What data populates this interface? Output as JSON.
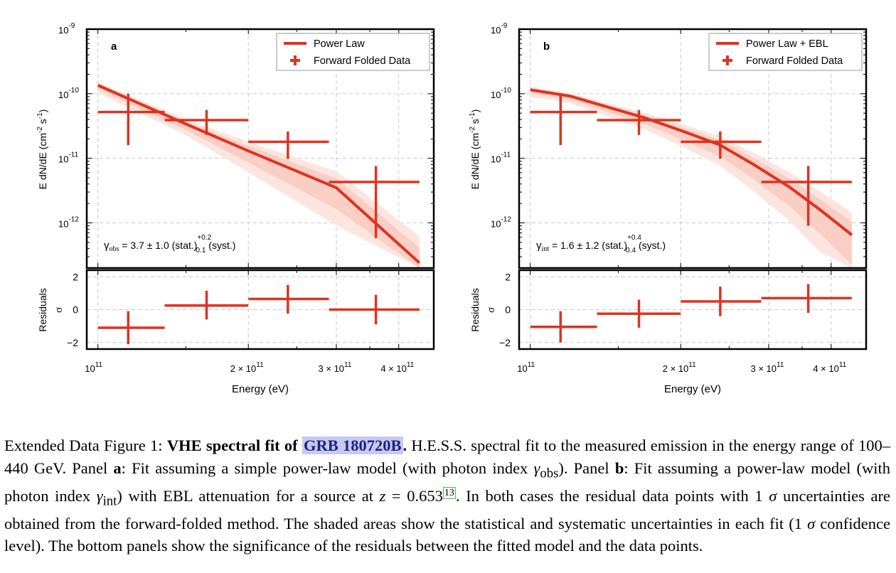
{
  "chart_data": [
    {
      "type": "scatter",
      "panel_label": "a",
      "xlabel": "Energy (eV)",
      "ylabel_main": "E dN/dE (cm^-2 s^-1)",
      "ylabel_resid": "Residuals σ",
      "xscale": "log",
      "yscale": "log",
      "xlim": [
        95000000000.0,
        470000000000.0
      ],
      "ylim": [
        2e-13,
        1e-09
      ],
      "resid_ylim": [
        -2.4,
        2.4
      ],
      "x_ticks": [
        {
          "v": 100000000000.0,
          "mant": "",
          "exp": "11"
        },
        {
          "v": 200000000000.0,
          "mant": "2 × ",
          "exp": "11"
        },
        {
          "v": 300000000000.0,
          "mant": "3 × ",
          "exp": "11"
        },
        {
          "v": 400000000000.0,
          "mant": "4 × ",
          "exp": "11"
        }
      ],
      "y_ticks": [
        {
          "v": 1e-09,
          "exp": "-9"
        },
        {
          "v": 1e-10,
          "exp": "-10"
        },
        {
          "v": 1e-11,
          "exp": "-11"
        },
        {
          "v": 1e-12,
          "exp": "-12"
        }
      ],
      "resid_ticks": [
        "2",
        "0",
        "−2"
      ],
      "legend": [
        "Power Law",
        "Forward Folded Data"
      ],
      "legend_position": "top-right",
      "grid": true,
      "model": "power-law",
      "model_curve": {
        "x": [
          100000000000.0,
          150000000000.0,
          200000000000.0,
          300000000000.0,
          440000000000.0
        ],
        "y": [
          1.35e-10,
          3.4e-11,
          1.3e-11,
          3.5e-12,
          2.4e-13
        ]
      },
      "points": [
        {
          "x": 115000000000.0,
          "xlo": 100000000000.0,
          "xhi": 136000000000.0,
          "y": 5.2e-11,
          "ylo": 1.6e-11,
          "yhi": 1e-10
        },
        {
          "x": 165000000000.0,
          "xlo": 136000000000.0,
          "xhi": 200000000000.0,
          "y": 3.9e-11,
          "ylo": 2.3e-11,
          "yhi": 5.6e-11
        },
        {
          "x": 240000000000.0,
          "xlo": 200000000000.0,
          "xhi": 290000000000.0,
          "y": 1.8e-11,
          "ylo": 9.8e-12,
          "yhi": 2.6e-11
        },
        {
          "x": 360000000000.0,
          "xlo": 290000000000.0,
          "xhi": 440000000000.0,
          "y": 4.3e-12,
          "ylo": 5.8e-13,
          "yhi": 7.6e-12
        }
      ],
      "residuals": [
        {
          "x": 115000000000.0,
          "xlo": 100000000000.0,
          "xhi": 136000000000.0,
          "y": -1.1,
          "ylo": -2.1,
          "yhi": -0.1
        },
        {
          "x": 165000000000.0,
          "xlo": 136000000000.0,
          "xhi": 200000000000.0,
          "y": 0.25,
          "ylo": -0.6,
          "yhi": 1.15
        },
        {
          "x": 240000000000.0,
          "xlo": 200000000000.0,
          "xhi": 290000000000.0,
          "y": 0.65,
          "ylo": -0.25,
          "yhi": 1.5
        },
        {
          "x": 360000000000.0,
          "xlo": 290000000000.0,
          "xhi": 440000000000.0,
          "y": 0.0,
          "ylo": -0.9,
          "yhi": 0.9
        }
      ],
      "annotation": {
        "sym": "γ",
        "sub": "obs",
        "text": " = 3.7 ± 1.0 (stat.)",
        "sup": "+0.2",
        "inf": "-0.1",
        "tail": " (syst.)"
      }
    },
    {
      "type": "scatter",
      "panel_label": "b",
      "xlabel": "Energy (eV)",
      "ylabel_main": "E dN/dE (cm^-2 s^-1)",
      "ylabel_resid": "Residuals σ",
      "xscale": "log",
      "yscale": "log",
      "xlim": [
        95000000000.0,
        470000000000.0
      ],
      "ylim": [
        2e-13,
        1e-09
      ],
      "resid_ylim": [
        -2.4,
        2.4
      ],
      "x_ticks": [
        {
          "v": 100000000000.0,
          "mant": "",
          "exp": "11"
        },
        {
          "v": 200000000000.0,
          "mant": "2 × ",
          "exp": "11"
        },
        {
          "v": 300000000000.0,
          "mant": "3 × ",
          "exp": "11"
        },
        {
          "v": 400000000000.0,
          "mant": "4 × ",
          "exp": "11"
        }
      ],
      "y_ticks": [
        {
          "v": 1e-09,
          "exp": "-9"
        },
        {
          "v": 1e-10,
          "exp": "-10"
        },
        {
          "v": 1e-11,
          "exp": "-11"
        },
        {
          "v": 1e-12,
          "exp": "-12"
        }
      ],
      "resid_ticks": [
        "2",
        "0",
        "−2"
      ],
      "legend": [
        "Power Law + EBL",
        "Forward Folded Data"
      ],
      "legend_position": "top-right",
      "grid": true,
      "model": "power-law-ebl",
      "model_curve": {
        "x": [
          100000000000.0,
          120000000000.0,
          140000000000.0,
          170000000000.0,
          200000000000.0,
          240000000000.0,
          280000000000.0,
          330000000000.0,
          380000000000.0,
          440000000000.0
        ],
        "y": [
          1.15e-10,
          9.2e-11,
          6.5e-11,
          4.2e-11,
          2.7e-11,
          1.6e-11,
          8e-12,
          3.6e-12,
          1.6e-12,
          6.5e-13
        ]
      },
      "points": [
        {
          "x": 115000000000.0,
          "xlo": 100000000000.0,
          "xhi": 136000000000.0,
          "y": 5.2e-11,
          "ylo": 1.6e-11,
          "yhi": 1e-10
        },
        {
          "x": 165000000000.0,
          "xlo": 136000000000.0,
          "xhi": 200000000000.0,
          "y": 3.9e-11,
          "ylo": 2.3e-11,
          "yhi": 5.6e-11
        },
        {
          "x": 240000000000.0,
          "xlo": 200000000000.0,
          "xhi": 290000000000.0,
          "y": 1.8e-11,
          "ylo": 9.8e-12,
          "yhi": 2.6e-11
        },
        {
          "x": 360000000000.0,
          "xlo": 290000000000.0,
          "xhi": 440000000000.0,
          "y": 4.3e-12,
          "ylo": 9e-13,
          "yhi": 7.6e-12
        }
      ],
      "residuals": [
        {
          "x": 115000000000.0,
          "xlo": 100000000000.0,
          "xhi": 136000000000.0,
          "y": -1.05,
          "ylo": -2.0,
          "yhi": -0.1
        },
        {
          "x": 165000000000.0,
          "xlo": 136000000000.0,
          "xhi": 200000000000.0,
          "y": -0.25,
          "ylo": -1.1,
          "yhi": 0.6
        },
        {
          "x": 240000000000.0,
          "xlo": 200000000000.0,
          "xhi": 290000000000.0,
          "y": 0.5,
          "ylo": -0.4,
          "yhi": 1.4
        },
        {
          "x": 360000000000.0,
          "xlo": 290000000000.0,
          "xhi": 440000000000.0,
          "y": 0.7,
          "ylo": -0.2,
          "yhi": 1.55
        }
      ],
      "annotation": {
        "sym": "γ",
        "sub": "int",
        "text": " = 1.6 ± 1.2 (stat.)",
        "sup": "+0.4",
        "inf": "-0.4",
        "tail": " (syst.)"
      }
    }
  ],
  "caption": {
    "prefix": "Extended Data Figure 1: ",
    "bold_title": "VHE spectral fit of ",
    "highlight": "GRB 180720B",
    "bold_end": ".",
    "s1": " H.E.S.S. spectral fit to the measured emission in the energy range of 100–440 GeV. Panel ",
    "panel_a": "a",
    "s2": ": Fit assuming a simple power-law model (with photon index ",
    "gamma_obs": "γ",
    "sub_obs": "obs",
    "s3": "). Panel ",
    "panel_b": "b",
    "s4": ": Fit assuming a power-law model (with photon index ",
    "gamma_int": "γ",
    "sub_int": "int",
    "s5": ") with EBL attenuation for a source at ",
    "z": "z",
    "z_val": " = 0.653",
    "ref": "13",
    "s6": ". In both cases the residual data points with 1 ",
    "sigma1": "σ",
    "s7": " uncertainties are obtained from the forward-folded method. The shaded areas show the statistical and systematic uncertainties in each fit (1 ",
    "sigma2": "σ",
    "s8": " confidence level). The bottom panels show the significance of the residuals between the fitted model and the data points."
  },
  "colors": {
    "data": "#dd3322",
    "band_light": "#fde5df",
    "band_dark": "#f8c8bd",
    "grid": "#c8c8c8"
  }
}
